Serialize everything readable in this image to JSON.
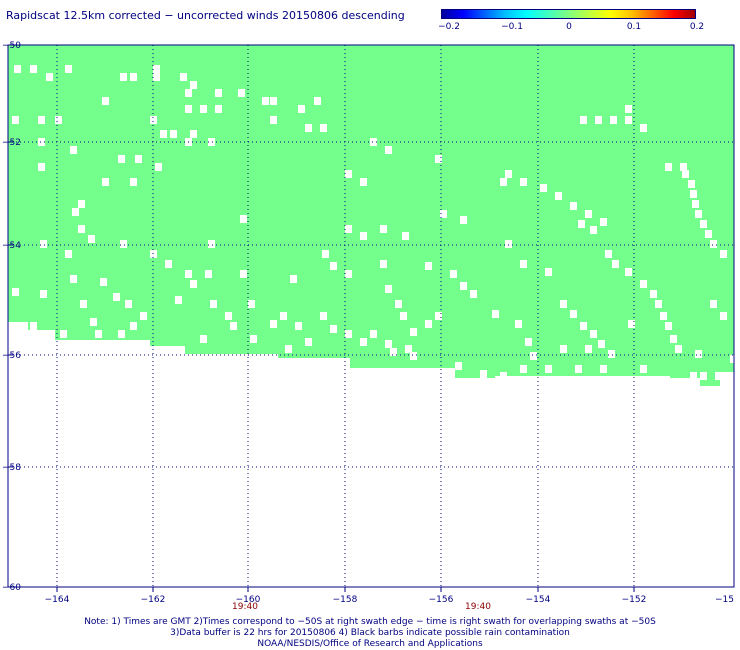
{
  "title": "Rapidscat 12.5km corrected − uncorrected winds 20150806 descending",
  "colorbar": {
    "colors": [
      "#0000a0",
      "#0000ff",
      "#0060ff",
      "#00c0ff",
      "#00ffff",
      "#40ffc0",
      "#80ff80",
      "#c0ff40",
      "#ffff00",
      "#ffc000",
      "#ff6000",
      "#ff0000",
      "#a00000"
    ],
    "ticks": [
      "−0.2",
      "−0.1",
      "0",
      "0.1",
      "0.2"
    ]
  },
  "map": {
    "swath_color": "#74ff8c",
    "lon_ticks": [
      "−164",
      "−162",
      "−160",
      "−158",
      "−156",
      "−154",
      "−152",
      "−15"
    ],
    "lat_ticks": [
      "−50",
      "−52",
      "−54",
      "−56",
      "−58",
      "−60"
    ],
    "swath_times": [
      "19:40",
      "19:40"
    ]
  },
  "notes": [
    "Note: 1) Times are GMT 2)Times correspond to −50S at right swath edge − time is right swath for overlapping swaths at −50S",
    "3)Data buffer is 22 hrs for 20150806 4) Black barbs indicate possible rain contamination",
    "NOAA/NESDIS/Office of Research and Applications"
  ]
}
